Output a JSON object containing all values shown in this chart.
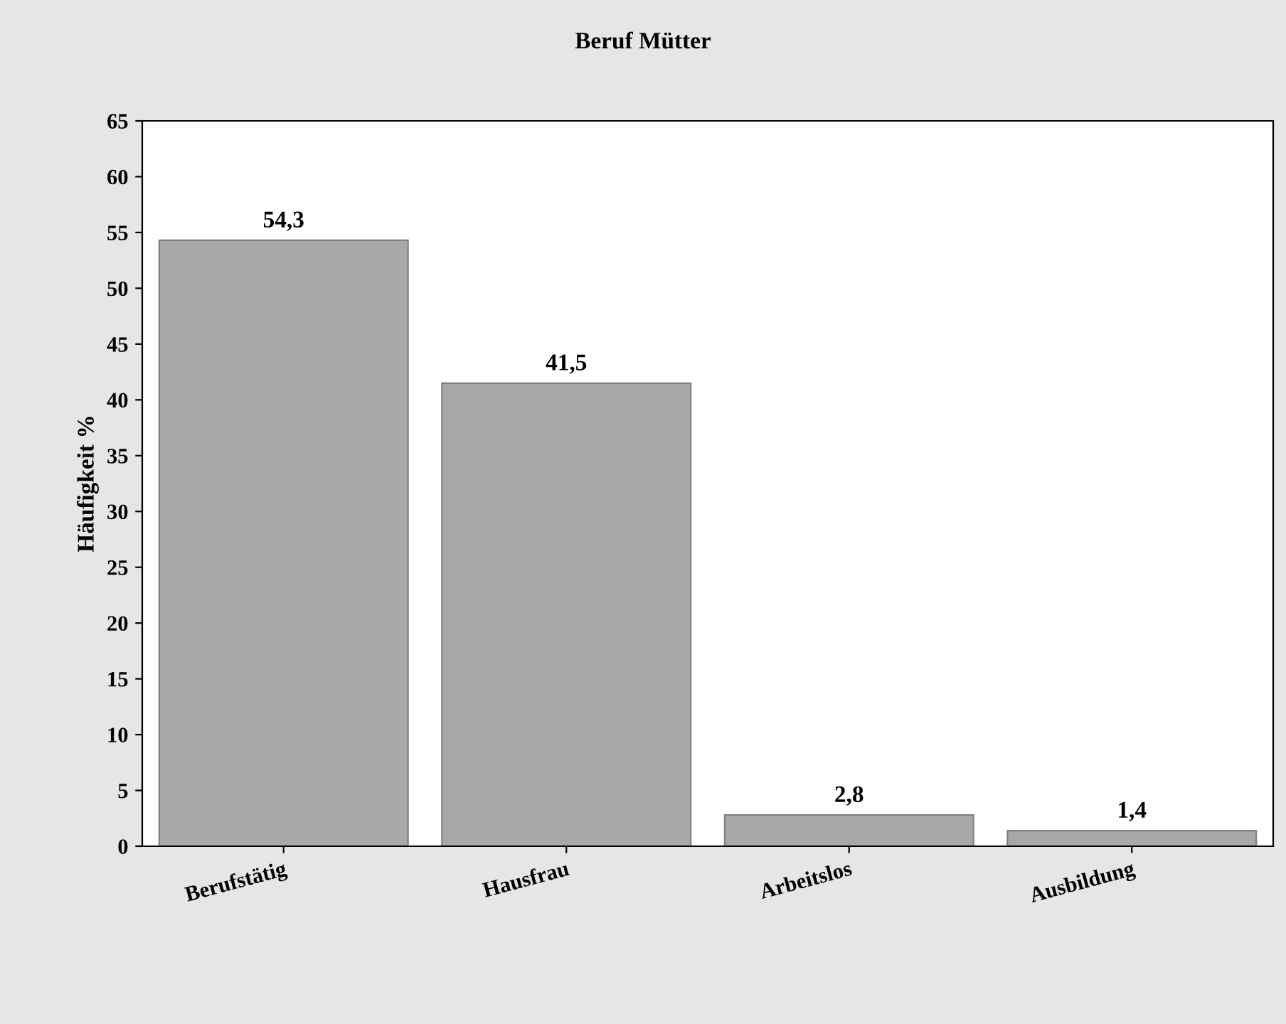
{
  "chart_data": {
    "type": "bar",
    "title": "Beruf Mütter",
    "ylabel": "Häufigkeit %",
    "categories": [
      "Berufstätig",
      "Hausfrau",
      "Arbeitslos",
      "Ausbildung"
    ],
    "values": [
      54.3,
      41.5,
      2.8,
      1.4
    ],
    "value_labels": [
      "54,3",
      "41,5",
      "2,8",
      "1,4"
    ],
    "color": "#a8a8a8",
    "ylim": [
      0,
      65
    ],
    "yticks": [
      0,
      5,
      10,
      15,
      20,
      25,
      30,
      35,
      40,
      45,
      50,
      55,
      60,
      65
    ],
    "grid": false,
    "legend": false
  }
}
